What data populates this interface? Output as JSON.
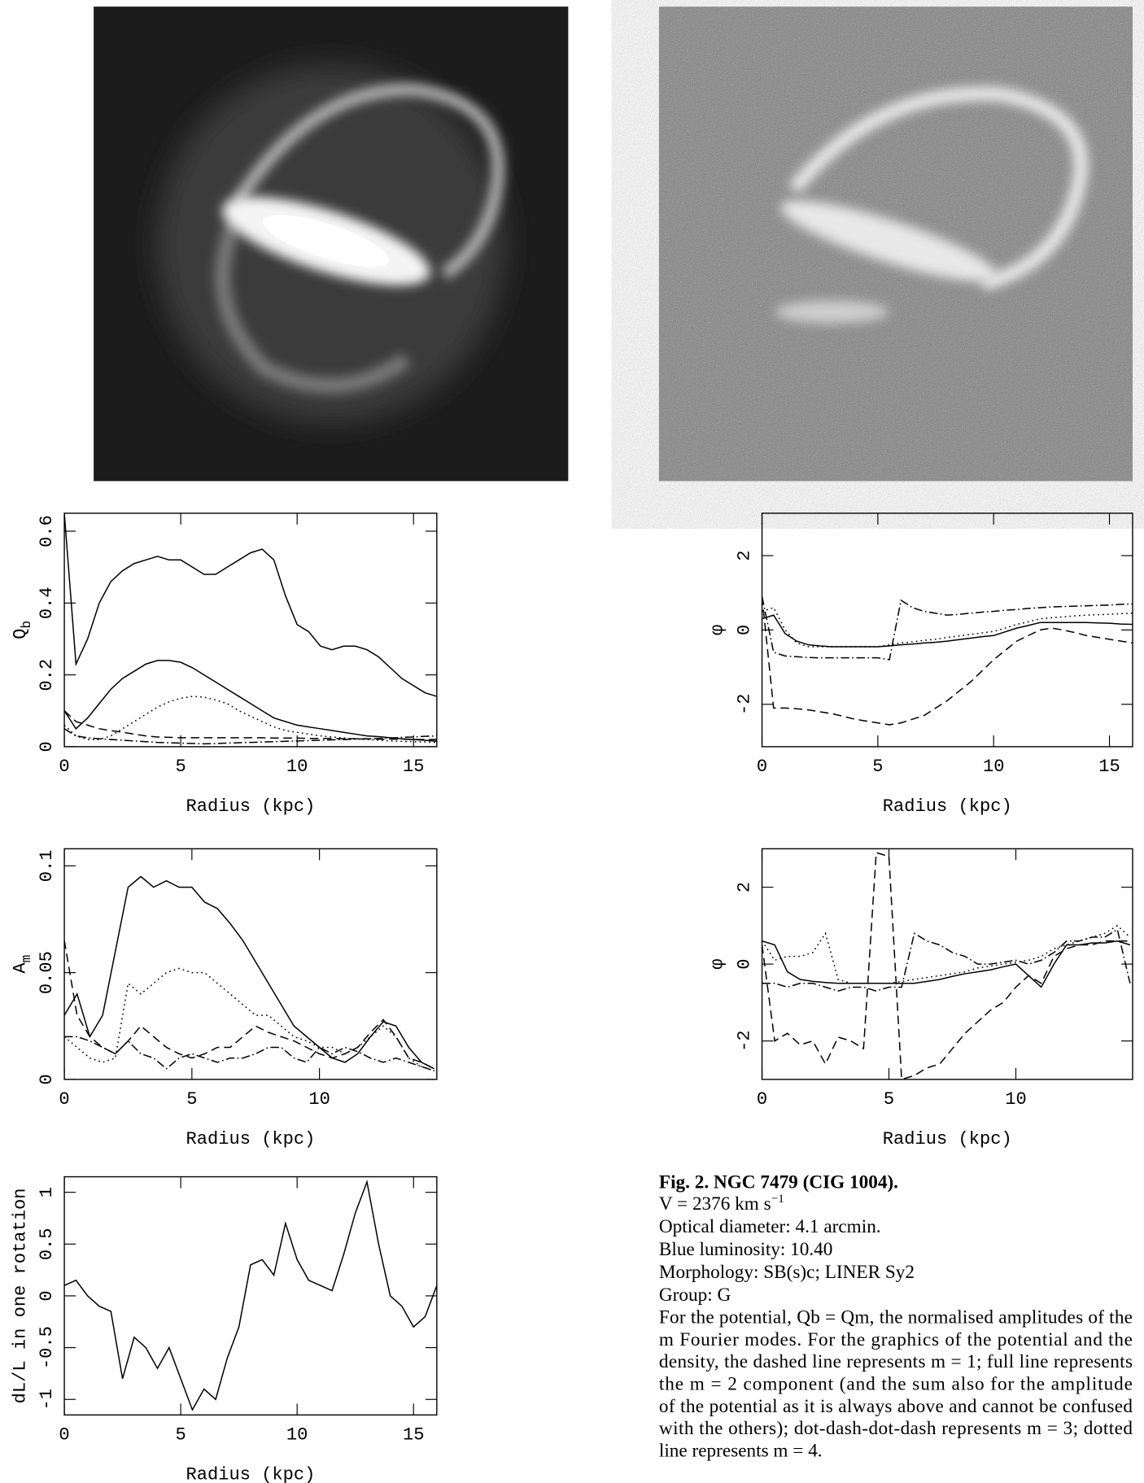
{
  "chart_data": [
    {
      "type": "line",
      "y_label": "Q",
      "y_label_sub": "b",
      "x_label": "Radius (kpc)",
      "xlim": [
        0,
        16
      ],
      "xticks": [
        0,
        5,
        10,
        15
      ],
      "ylim": [
        0,
        0.65
      ],
      "yticks": [
        0,
        0.2,
        0.4,
        0.6
      ],
      "x": [
        0,
        0.5,
        1,
        1.5,
        2,
        2.5,
        3,
        3.5,
        4,
        4.5,
        5,
        5.5,
        6,
        6.5,
        7,
        7.5,
        8,
        8.5,
        9,
        9.5,
        10,
        10.5,
        11,
        11.5,
        12,
        12.5,
        13,
        13.5,
        14,
        14.5,
        15,
        15.5,
        16
      ],
      "series": [
        {
          "color": "#000",
          "style": "solid",
          "values": [
            0.65,
            0.23,
            0.3,
            0.4,
            0.46,
            0.49,
            0.51,
            0.52,
            0.53,
            0.52,
            0.52,
            0.5,
            0.48,
            0.48,
            0.5,
            0.52,
            0.54,
            0.55,
            0.52,
            0.42,
            0.34,
            0.32,
            0.28,
            0.27,
            0.28,
            0.28,
            0.27,
            0.25,
            0.22,
            0.19,
            0.17,
            0.15,
            0.14
          ]
        },
        {
          "color": "#000",
          "style": "solid",
          "values": [
            0.1,
            0.05,
            0.08,
            0.12,
            0.16,
            0.19,
            0.21,
            0.23,
            0.24,
            0.24,
            0.235,
            0.22,
            0.2,
            0.18,
            0.16,
            0.14,
            0.12,
            0.1,
            0.08,
            0.07,
            0.06,
            0.055,
            0.05,
            0.045,
            0.04,
            0.035,
            0.03,
            0.028,
            0.025,
            0.022,
            0.02,
            0.018,
            0.015
          ]
        },
        {
          "color": "#000",
          "style": "dotted",
          "values": [
            0.06,
            0.03,
            0.02,
            0.02,
            0.03,
            0.05,
            0.07,
            0.09,
            0.11,
            0.125,
            0.135,
            0.14,
            0.138,
            0.13,
            0.12,
            0.1,
            0.085,
            0.07,
            0.055,
            0.045,
            0.04,
            0.035,
            0.03,
            0.027,
            0.024,
            0.022,
            0.02,
            0.018,
            0.016,
            0.015,
            0.014,
            0.013,
            0.012
          ]
        },
        {
          "color": "#000",
          "style": "dashed",
          "values": [
            0.1,
            0.07,
            0.06,
            0.05,
            0.045,
            0.04,
            0.035,
            0.03,
            0.027,
            0.026,
            0.025,
            0.025,
            0.025,
            0.025,
            0.025,
            0.025,
            0.025,
            0.025,
            0.024,
            0.024,
            0.024,
            0.023,
            0.023,
            0.023,
            0.022,
            0.022,
            0.022,
            0.021,
            0.021,
            0.021,
            0.02,
            0.02,
            0.02
          ]
        },
        {
          "color": "#000",
          "style": "dashdot",
          "values": [
            0.05,
            0.03,
            0.025,
            0.022,
            0.02,
            0.018,
            0.016,
            0.014,
            0.012,
            0.011,
            0.01,
            0.009,
            0.008,
            0.009,
            0.01,
            0.011,
            0.012,
            0.013,
            0.014,
            0.015,
            0.016,
            0.017,
            0.018,
            0.019,
            0.02,
            0.021,
            0.022,
            0.023,
            0.024,
            0.026,
            0.027,
            0.029,
            0.03
          ]
        }
      ]
    },
    {
      "type": "line",
      "y_label": "φ",
      "x_label": "Radius (kpc)",
      "xlim": [
        0,
        16
      ],
      "xticks": [
        0,
        5,
        10,
        15
      ],
      "ylim": [
        -3.14,
        3.14
      ],
      "yticks": [
        -2,
        0,
        2
      ],
      "x": [
        0,
        0.5,
        1,
        1.5,
        2,
        2.5,
        3,
        3.5,
        4,
        4.5,
        5,
        5.5,
        6,
        6.5,
        7,
        7.5,
        8,
        8.5,
        9,
        9.5,
        10,
        10.5,
        11,
        11.5,
        12,
        12.5,
        13,
        13.5,
        14,
        14.5,
        15,
        15.5,
        16
      ],
      "series": [
        {
          "color": "#000",
          "style": "dashed",
          "values": [
            0.9,
            -2.1,
            -2.1,
            -2.12,
            -2.15,
            -2.2,
            -2.25,
            -2.32,
            -2.4,
            -2.45,
            -2.5,
            -2.55,
            -2.5,
            -2.4,
            -2.3,
            -2.1,
            -1.9,
            -1.65,
            -1.4,
            -1.1,
            -0.8,
            -0.55,
            -0.3,
            -0.15,
            0.0,
            0.05,
            0.0,
            -0.07,
            -0.15,
            -0.2,
            -0.25,
            -0.3,
            -0.35
          ]
        },
        {
          "color": "#000",
          "style": "solid",
          "values": [
            0.3,
            0.4,
            -0.1,
            -0.3,
            -0.4,
            -0.43,
            -0.45,
            -0.45,
            -0.45,
            -0.45,
            -0.45,
            -0.43,
            -0.4,
            -0.38,
            -0.35,
            -0.33,
            -0.3,
            -0.26,
            -0.22,
            -0.18,
            -0.15,
            -0.05,
            0.05,
            0.12,
            0.2,
            0.2,
            0.2,
            0.2,
            0.2,
            0.19,
            0.18,
            0.16,
            0.15
          ]
        },
        {
          "color": "#000",
          "style": "dotted",
          "values": [
            0.5,
            0.6,
            0.0,
            -0.35,
            -0.45,
            -0.45,
            -0.45,
            -0.45,
            -0.45,
            -0.45,
            -0.45,
            -0.4,
            -0.35,
            -0.32,
            -0.28,
            -0.25,
            -0.2,
            -0.16,
            -0.12,
            -0.08,
            -0.04,
            0.05,
            0.15,
            0.22,
            0.3,
            0.33,
            0.35,
            0.38,
            0.4,
            0.41,
            0.42,
            0.44,
            0.45
          ]
        },
        {
          "color": "#000",
          "style": "dashdot",
          "values": [
            0.9,
            -0.6,
            -0.7,
            -0.72,
            -0.74,
            -0.75,
            -0.75,
            -0.75,
            -0.75,
            -0.75,
            -0.75,
            -0.8,
            0.8,
            0.6,
            0.5,
            0.45,
            0.4,
            0.42,
            0.45,
            0.48,
            0.5,
            0.53,
            0.55,
            0.58,
            0.6,
            0.62,
            0.63,
            0.64,
            0.65,
            0.66,
            0.67,
            0.69,
            0.7
          ]
        }
      ]
    },
    {
      "type": "line",
      "y_label": "A",
      "y_label_sub": "m",
      "x_label": "Radius (kpc)",
      "xlim": [
        0,
        14.6
      ],
      "xticks": [
        0,
        5,
        10
      ],
      "ylim": [
        0,
        0.108
      ],
      "yticks": [
        0,
        0.05,
        0.1
      ],
      "x": [
        0,
        0.5,
        1,
        1.5,
        2,
        2.5,
        3,
        3.5,
        4,
        4.5,
        5,
        5.5,
        6,
        6.5,
        7,
        7.5,
        8,
        8.5,
        9,
        9.5,
        10,
        10.5,
        11,
        11.5,
        12,
        12.5,
        13,
        13.5,
        14,
        14.5
      ],
      "series": [
        {
          "color": "#000",
          "style": "solid",
          "values": [
            0.03,
            0.04,
            0.02,
            0.03,
            0.06,
            0.09,
            0.095,
            0.09,
            0.093,
            0.09,
            0.09,
            0.083,
            0.08,
            0.073,
            0.065,
            0.055,
            0.045,
            0.035,
            0.025,
            0.02,
            0.015,
            0.01,
            0.008,
            0.012,
            0.02,
            0.027,
            0.025,
            0.015,
            0.008,
            0.005
          ]
        },
        {
          "color": "#000",
          "style": "dotted",
          "values": [
            0.02,
            0.015,
            0.01,
            0.008,
            0.01,
            0.045,
            0.04,
            0.045,
            0.05,
            0.052,
            0.05,
            0.05,
            0.045,
            0.04,
            0.035,
            0.03,
            0.03,
            0.025,
            0.02,
            0.018,
            0.015,
            0.015,
            0.012,
            0.015,
            0.02,
            0.025,
            0.02,
            0.01,
            0.006,
            0.004
          ]
        },
        {
          "color": "#000",
          "style": "dashed",
          "values": [
            0.065,
            0.03,
            0.02,
            0.015,
            0.012,
            0.018,
            0.025,
            0.02,
            0.015,
            0.012,
            0.01,
            0.012,
            0.015,
            0.015,
            0.02,
            0.025,
            0.022,
            0.02,
            0.018,
            0.015,
            0.012,
            0.01,
            0.012,
            0.015,
            0.022,
            0.028,
            0.02,
            0.01,
            0.008,
            0.005
          ]
        },
        {
          "color": "#000",
          "style": "dashdot",
          "values": [
            0.02,
            0.02,
            0.018,
            0.015,
            0.012,
            0.018,
            0.012,
            0.01,
            0.005,
            0.01,
            0.012,
            0.01,
            0.008,
            0.01,
            0.01,
            0.012,
            0.015,
            0.015,
            0.01,
            0.008,
            0.015,
            0.012,
            0.015,
            0.013,
            0.01,
            0.008,
            0.01,
            0.008,
            0.006,
            0.004
          ]
        }
      ]
    },
    {
      "type": "line",
      "y_label": "φ",
      "x_label": "Radius (kpc)",
      "xlim": [
        0,
        14.6
      ],
      "xticks": [
        0,
        5,
        10
      ],
      "ylim": [
        -3,
        3
      ],
      "yticks": [
        -2,
        0,
        2
      ],
      "x": [
        0,
        0.5,
        1,
        1.5,
        2,
        2.5,
        3,
        3.5,
        4,
        4.5,
        5,
        5.5,
        6,
        6.5,
        7,
        7.5,
        8,
        8.5,
        9,
        9.5,
        10,
        10.5,
        11,
        11.5,
        12,
        12.5,
        13,
        13.5,
        14,
        14.5
      ],
      "series": [
        {
          "color": "#000",
          "style": "solid",
          "values": [
            0.6,
            0.5,
            -0.2,
            -0.4,
            -0.45,
            -0.48,
            -0.5,
            -0.5,
            -0.5,
            -0.5,
            -0.5,
            -0.5,
            -0.5,
            -0.45,
            -0.4,
            -0.32,
            -0.25,
            -0.2,
            -0.15,
            -0.07,
            0.0,
            -0.3,
            -0.6,
            0.0,
            0.5,
            0.5,
            0.55,
            0.55,
            0.6,
            0.5
          ]
        },
        {
          "color": "#000",
          "style": "dashed",
          "values": [
            0.5,
            -2.0,
            -1.8,
            -2.1,
            -2.0,
            -2.6,
            -1.9,
            -2.0,
            -2.2,
            2.9,
            2.8,
            -3.0,
            -2.9,
            -2.7,
            -2.6,
            -2.2,
            -1.8,
            -1.5,
            -1.2,
            -1.0,
            -0.6,
            -0.3,
            -0.5,
            0.2,
            0.4,
            0.5,
            0.5,
            0.6,
            0.6,
            0.6
          ]
        },
        {
          "color": "#000",
          "style": "dashdot",
          "values": [
            -0.5,
            -0.5,
            -0.6,
            -0.5,
            -0.5,
            -0.6,
            -0.7,
            -0.6,
            -0.6,
            -0.7,
            -0.6,
            -0.6,
            0.8,
            0.6,
            0.5,
            0.3,
            0.2,
            0.0,
            0.0,
            0.05,
            0.1,
            0.0,
            0.1,
            0.3,
            0.6,
            0.6,
            0.7,
            0.7,
            0.9,
            -0.5
          ]
        },
        {
          "color": "#000",
          "style": "dotted",
          "values": [
            0.6,
            0.1,
            0.2,
            0.2,
            0.3,
            0.8,
            -0.4,
            -0.5,
            -0.5,
            -0.5,
            -0.5,
            -0.45,
            -0.4,
            -0.35,
            -0.3,
            -0.25,
            -0.2,
            -0.1,
            -0.05,
            0.0,
            0.05,
            0.1,
            0.2,
            0.4,
            0.5,
            0.6,
            0.7,
            0.8,
            1.0,
            0.7
          ]
        }
      ]
    },
    {
      "type": "line",
      "y_label": "dL/L in one rotation",
      "x_label": "Radius (kpc)",
      "xlim": [
        0,
        16
      ],
      "xticks": [
        0,
        5,
        10,
        15
      ],
      "ylim": [
        -1.15,
        1.15
      ],
      "yticks": [
        -1,
        -0.5,
        0,
        0.5,
        1
      ],
      "x": [
        0,
        0.5,
        1,
        1.5,
        2,
        2.5,
        3,
        3.5,
        4,
        4.5,
        5,
        5.5,
        6,
        6.5,
        7,
        7.5,
        8,
        8.5,
        9,
        9.5,
        10,
        10.5,
        11,
        11.5,
        12,
        12.5,
        13,
        13.5,
        14,
        14.5,
        15,
        15.5,
        16
      ],
      "series": [
        {
          "color": "#000",
          "style": "solid",
          "values": [
            0.1,
            0.15,
            0.0,
            -0.1,
            -0.15,
            -0.8,
            -0.4,
            -0.5,
            -0.7,
            -0.5,
            -0.8,
            -1.1,
            -0.9,
            -1.0,
            -0.6,
            -0.3,
            0.3,
            0.35,
            0.2,
            0.7,
            0.35,
            0.15,
            0.1,
            0.05,
            0.4,
            0.8,
            1.1,
            0.5,
            0.0,
            -0.1,
            -0.3,
            -0.2,
            0.1
          ]
        }
      ]
    }
  ],
  "caption": {
    "title": "Fig. 2. NGC 7479 (CIG 1004).",
    "velocity": "V = 2376 km s",
    "velocity_sup": "−1",
    "lines": [
      "Optical diameter: 4.1 arcmin.",
      "Blue luminosity: 10.40",
      "Morphology: SB(s)c; LINER Sy2",
      "Group: G"
    ],
    "paragraph": [
      "For the potential, Qb = Qm, the normalised amplitudes of the",
      "m Fourier modes. For the graphics of the potential and the",
      "density, the dashed line represents m = 1; full line represents",
      "the m = 2 component (and the sum also for the amplitude",
      "of the potential as it is always above and cannot be confused",
      "with the others); dot-dash-dot-dash represents m = 3; dotted",
      "line represents m = 4."
    ]
  }
}
